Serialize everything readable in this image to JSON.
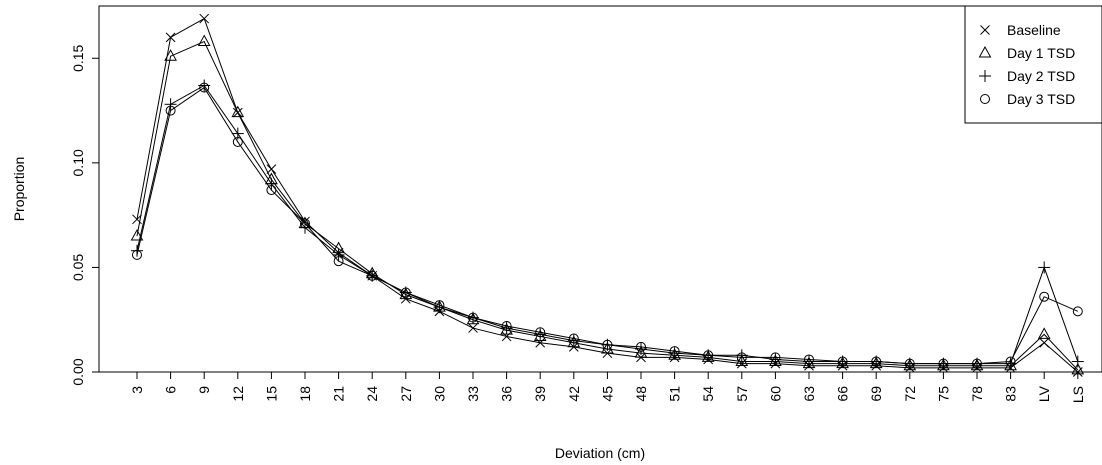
{
  "chart_data": {
    "type": "line",
    "title": "",
    "xlabel": "Deviation (cm)",
    "ylabel": "Proportion",
    "ylim": [
      0,
      0.175
    ],
    "y_ticks": [
      0.0,
      0.05,
      0.1,
      0.15
    ],
    "y_tick_labels": [
      "0.00",
      "0.05",
      "0.10",
      "0.15"
    ],
    "grid": false,
    "legend_position": "top-right",
    "categories": [
      "3",
      "6",
      "9",
      "12",
      "15",
      "18",
      "21",
      "24",
      "27",
      "30",
      "33",
      "36",
      "39",
      "42",
      "45",
      "48",
      "51",
      "54",
      "57",
      "60",
      "63",
      "66",
      "69",
      "72",
      "75",
      "78",
      "83",
      "LV",
      "LS"
    ],
    "series": [
      {
        "name": "Baseline",
        "marker": "x",
        "values": [
          0.073,
          0.16,
          0.169,
          0.124,
          0.097,
          0.072,
          0.057,
          0.046,
          0.035,
          0.029,
          0.021,
          0.017,
          0.014,
          0.012,
          0.009,
          0.007,
          0.007,
          0.006,
          0.004,
          0.004,
          0.003,
          0.003,
          0.003,
          0.002,
          0.002,
          0.002,
          0.002,
          0.014,
          0.0
        ]
      },
      {
        "name": "Day 1 TSD",
        "marker": "triangle",
        "values": [
          0.065,
          0.151,
          0.158,
          0.124,
          0.092,
          0.071,
          0.059,
          0.047,
          0.037,
          0.031,
          0.025,
          0.02,
          0.017,
          0.014,
          0.011,
          0.009,
          0.008,
          0.007,
          0.005,
          0.005,
          0.004,
          0.004,
          0.004,
          0.003,
          0.003,
          0.003,
          0.003,
          0.018,
          0.001
        ]
      },
      {
        "name": "Day 2 TSD",
        "marker": "plus",
        "values": [
          0.058,
          0.128,
          0.137,
          0.114,
          0.09,
          0.069,
          0.056,
          0.046,
          0.038,
          0.031,
          0.026,
          0.021,
          0.018,
          0.015,
          0.013,
          0.011,
          0.009,
          0.008,
          0.008,
          0.006,
          0.005,
          0.005,
          0.005,
          0.004,
          0.004,
          0.004,
          0.004,
          0.05,
          0.005
        ]
      },
      {
        "name": "Day 3 TSD",
        "marker": "circle",
        "values": [
          0.056,
          0.125,
          0.136,
          0.11,
          0.087,
          0.071,
          0.053,
          0.046,
          0.038,
          0.032,
          0.026,
          0.022,
          0.019,
          0.016,
          0.013,
          0.012,
          0.01,
          0.008,
          0.007,
          0.007,
          0.006,
          0.005,
          0.005,
          0.004,
          0.004,
          0.004,
          0.005,
          0.036,
          0.029
        ]
      }
    ]
  }
}
